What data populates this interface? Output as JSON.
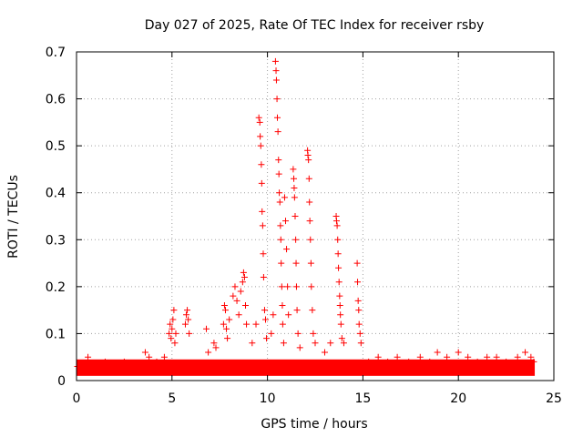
{
  "chart_data": {
    "type": "scatter",
    "title": "Day 027 of 2025, Rate Of TEC Index for receiver rsby",
    "xlabel": "GPS time / hours",
    "ylabel": "ROTI / TECUs",
    "xlim": [
      0,
      25
    ],
    "ylim": [
      0,
      0.7
    ],
    "x_ticks": [
      0,
      5,
      10,
      15,
      20,
      25
    ],
    "x_tick_labels": [
      "0",
      "5",
      "10",
      "15",
      "20",
      "25"
    ],
    "y_ticks": [
      0,
      0.1,
      0.2,
      0.3,
      0.4,
      0.5,
      0.6,
      0.7
    ],
    "y_tick_labels": [
      "0",
      "0.1",
      "0.2",
      "0.3",
      "0.4",
      "0.5",
      "0.6",
      "0.7"
    ],
    "grid": true,
    "marker": "+",
    "color": "#ff0000",
    "background_band": {
      "x_range": [
        0,
        24
      ],
      "y_range": [
        0.01,
        0.045
      ]
    },
    "series": [
      {
        "name": "ROTI",
        "points": [
          [
            0.05,
            0.03
          ],
          [
            0.3,
            0.02
          ],
          [
            0.6,
            0.05
          ],
          [
            1.0,
            0.03
          ],
          [
            1.5,
            0.04
          ],
          [
            2.0,
            0.03
          ],
          [
            2.5,
            0.04
          ],
          [
            3.0,
            0.03
          ],
          [
            3.6,
            0.06
          ],
          [
            3.8,
            0.05
          ],
          [
            4.2,
            0.04
          ],
          [
            4.6,
            0.05
          ],
          [
            4.85,
            0.1
          ],
          [
            4.9,
            0.12
          ],
          [
            4.95,
            0.09
          ],
          [
            5.0,
            0.11
          ],
          [
            5.05,
            0.13
          ],
          [
            5.1,
            0.15
          ],
          [
            5.15,
            0.08
          ],
          [
            5.2,
            0.1
          ],
          [
            5.7,
            0.12
          ],
          [
            5.75,
            0.14
          ],
          [
            5.8,
            0.15
          ],
          [
            5.85,
            0.13
          ],
          [
            5.9,
            0.1
          ],
          [
            6.8,
            0.11
          ],
          [
            6.9,
            0.06
          ],
          [
            7.2,
            0.08
          ],
          [
            7.3,
            0.07
          ],
          [
            7.7,
            0.12
          ],
          [
            7.75,
            0.16
          ],
          [
            7.8,
            0.15
          ],
          [
            7.85,
            0.11
          ],
          [
            7.9,
            0.09
          ],
          [
            8.0,
            0.13
          ],
          [
            8.2,
            0.18
          ],
          [
            8.3,
            0.2
          ],
          [
            8.4,
            0.17
          ],
          [
            8.5,
            0.14
          ],
          [
            8.6,
            0.19
          ],
          [
            8.7,
            0.21
          ],
          [
            8.75,
            0.23
          ],
          [
            8.8,
            0.22
          ],
          [
            8.85,
            0.16
          ],
          [
            8.9,
            0.12
          ],
          [
            9.2,
            0.08
          ],
          [
            9.4,
            0.12
          ],
          [
            9.55,
            0.56
          ],
          [
            9.6,
            0.55
          ],
          [
            9.62,
            0.52
          ],
          [
            9.65,
            0.5
          ],
          [
            9.68,
            0.46
          ],
          [
            9.7,
            0.42
          ],
          [
            9.72,
            0.36
          ],
          [
            9.75,
            0.33
          ],
          [
            9.78,
            0.27
          ],
          [
            9.8,
            0.22
          ],
          [
            9.85,
            0.15
          ],
          [
            9.9,
            0.13
          ],
          [
            9.95,
            0.09
          ],
          [
            10.2,
            0.1
          ],
          [
            10.3,
            0.14
          ],
          [
            10.42,
            0.68
          ],
          [
            10.45,
            0.66
          ],
          [
            10.47,
            0.64
          ],
          [
            10.5,
            0.6
          ],
          [
            10.52,
            0.56
          ],
          [
            10.55,
            0.53
          ],
          [
            10.58,
            0.47
          ],
          [
            10.6,
            0.44
          ],
          [
            10.62,
            0.4
          ],
          [
            10.65,
            0.38
          ],
          [
            10.68,
            0.33
          ],
          [
            10.7,
            0.3
          ],
          [
            10.72,
            0.25
          ],
          [
            10.75,
            0.2
          ],
          [
            10.78,
            0.16
          ],
          [
            10.8,
            0.12
          ],
          [
            10.85,
            0.08
          ],
          [
            10.9,
            0.39
          ],
          [
            10.95,
            0.34
          ],
          [
            11.0,
            0.28
          ],
          [
            11.05,
            0.2
          ],
          [
            11.1,
            0.14
          ],
          [
            11.35,
            0.45
          ],
          [
            11.38,
            0.43
          ],
          [
            11.4,
            0.41
          ],
          [
            11.42,
            0.39
          ],
          [
            11.45,
            0.35
          ],
          [
            11.48,
            0.3
          ],
          [
            11.5,
            0.25
          ],
          [
            11.52,
            0.2
          ],
          [
            11.55,
            0.15
          ],
          [
            11.6,
            0.1
          ],
          [
            11.7,
            0.07
          ],
          [
            12.1,
            0.49
          ],
          [
            12.12,
            0.48
          ],
          [
            12.15,
            0.47
          ],
          [
            12.18,
            0.43
          ],
          [
            12.2,
            0.38
          ],
          [
            12.22,
            0.34
          ],
          [
            12.25,
            0.3
          ],
          [
            12.28,
            0.25
          ],
          [
            12.3,
            0.2
          ],
          [
            12.35,
            0.15
          ],
          [
            12.4,
            0.1
          ],
          [
            12.5,
            0.08
          ],
          [
            13.0,
            0.06
          ],
          [
            13.3,
            0.08
          ],
          [
            13.6,
            0.35
          ],
          [
            13.62,
            0.34
          ],
          [
            13.65,
            0.33
          ],
          [
            13.68,
            0.3
          ],
          [
            13.7,
            0.27
          ],
          [
            13.72,
            0.24
          ],
          [
            13.75,
            0.21
          ],
          [
            13.78,
            0.18
          ],
          [
            13.8,
            0.16
          ],
          [
            13.82,
            0.14
          ],
          [
            13.85,
            0.12
          ],
          [
            13.9,
            0.09
          ],
          [
            14.0,
            0.08
          ],
          [
            14.7,
            0.25
          ],
          [
            14.72,
            0.21
          ],
          [
            14.75,
            0.17
          ],
          [
            14.78,
            0.15
          ],
          [
            14.8,
            0.12
          ],
          [
            14.85,
            0.1
          ],
          [
            14.9,
            0.08
          ],
          [
            15.3,
            0.04
          ],
          [
            15.8,
            0.05
          ],
          [
            16.3,
            0.04
          ],
          [
            16.8,
            0.05
          ],
          [
            17.4,
            0.04
          ],
          [
            18.0,
            0.05
          ],
          [
            18.5,
            0.04
          ],
          [
            18.9,
            0.06
          ],
          [
            19.4,
            0.05
          ],
          [
            20.0,
            0.06
          ],
          [
            20.5,
            0.05
          ],
          [
            21.0,
            0.04
          ],
          [
            21.5,
            0.05
          ],
          [
            22.0,
            0.05
          ],
          [
            22.5,
            0.04
          ],
          [
            23.1,
            0.05
          ],
          [
            23.5,
            0.06
          ],
          [
            23.8,
            0.05
          ],
          [
            23.95,
            0.04
          ]
        ]
      }
    ]
  }
}
